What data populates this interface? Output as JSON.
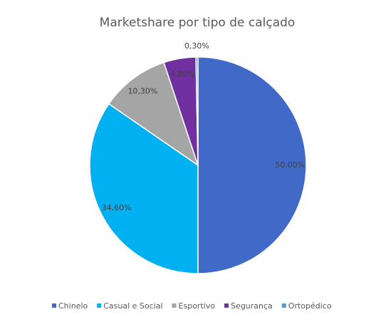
{
  "chart_data": {
    "type": "pie",
    "title": "Marketshare por tipo de calçado",
    "categories": [
      "Chinelo",
      "Casual e Social",
      "Esportivo",
      "Segurança",
      "Ortopédico"
    ],
    "values": [
      50,
      34.6,
      10.3,
      4.8,
      0.3
    ],
    "value_labels": [
      "50,00%",
      "34,60%",
      "10,30%",
      "4,80%",
      "0,30%"
    ],
    "colors": [
      "#4169c8",
      "#00b0f0",
      "#a5a5a5",
      "#7030a0",
      "#5b9bd5"
    ],
    "legend": "bottom"
  }
}
